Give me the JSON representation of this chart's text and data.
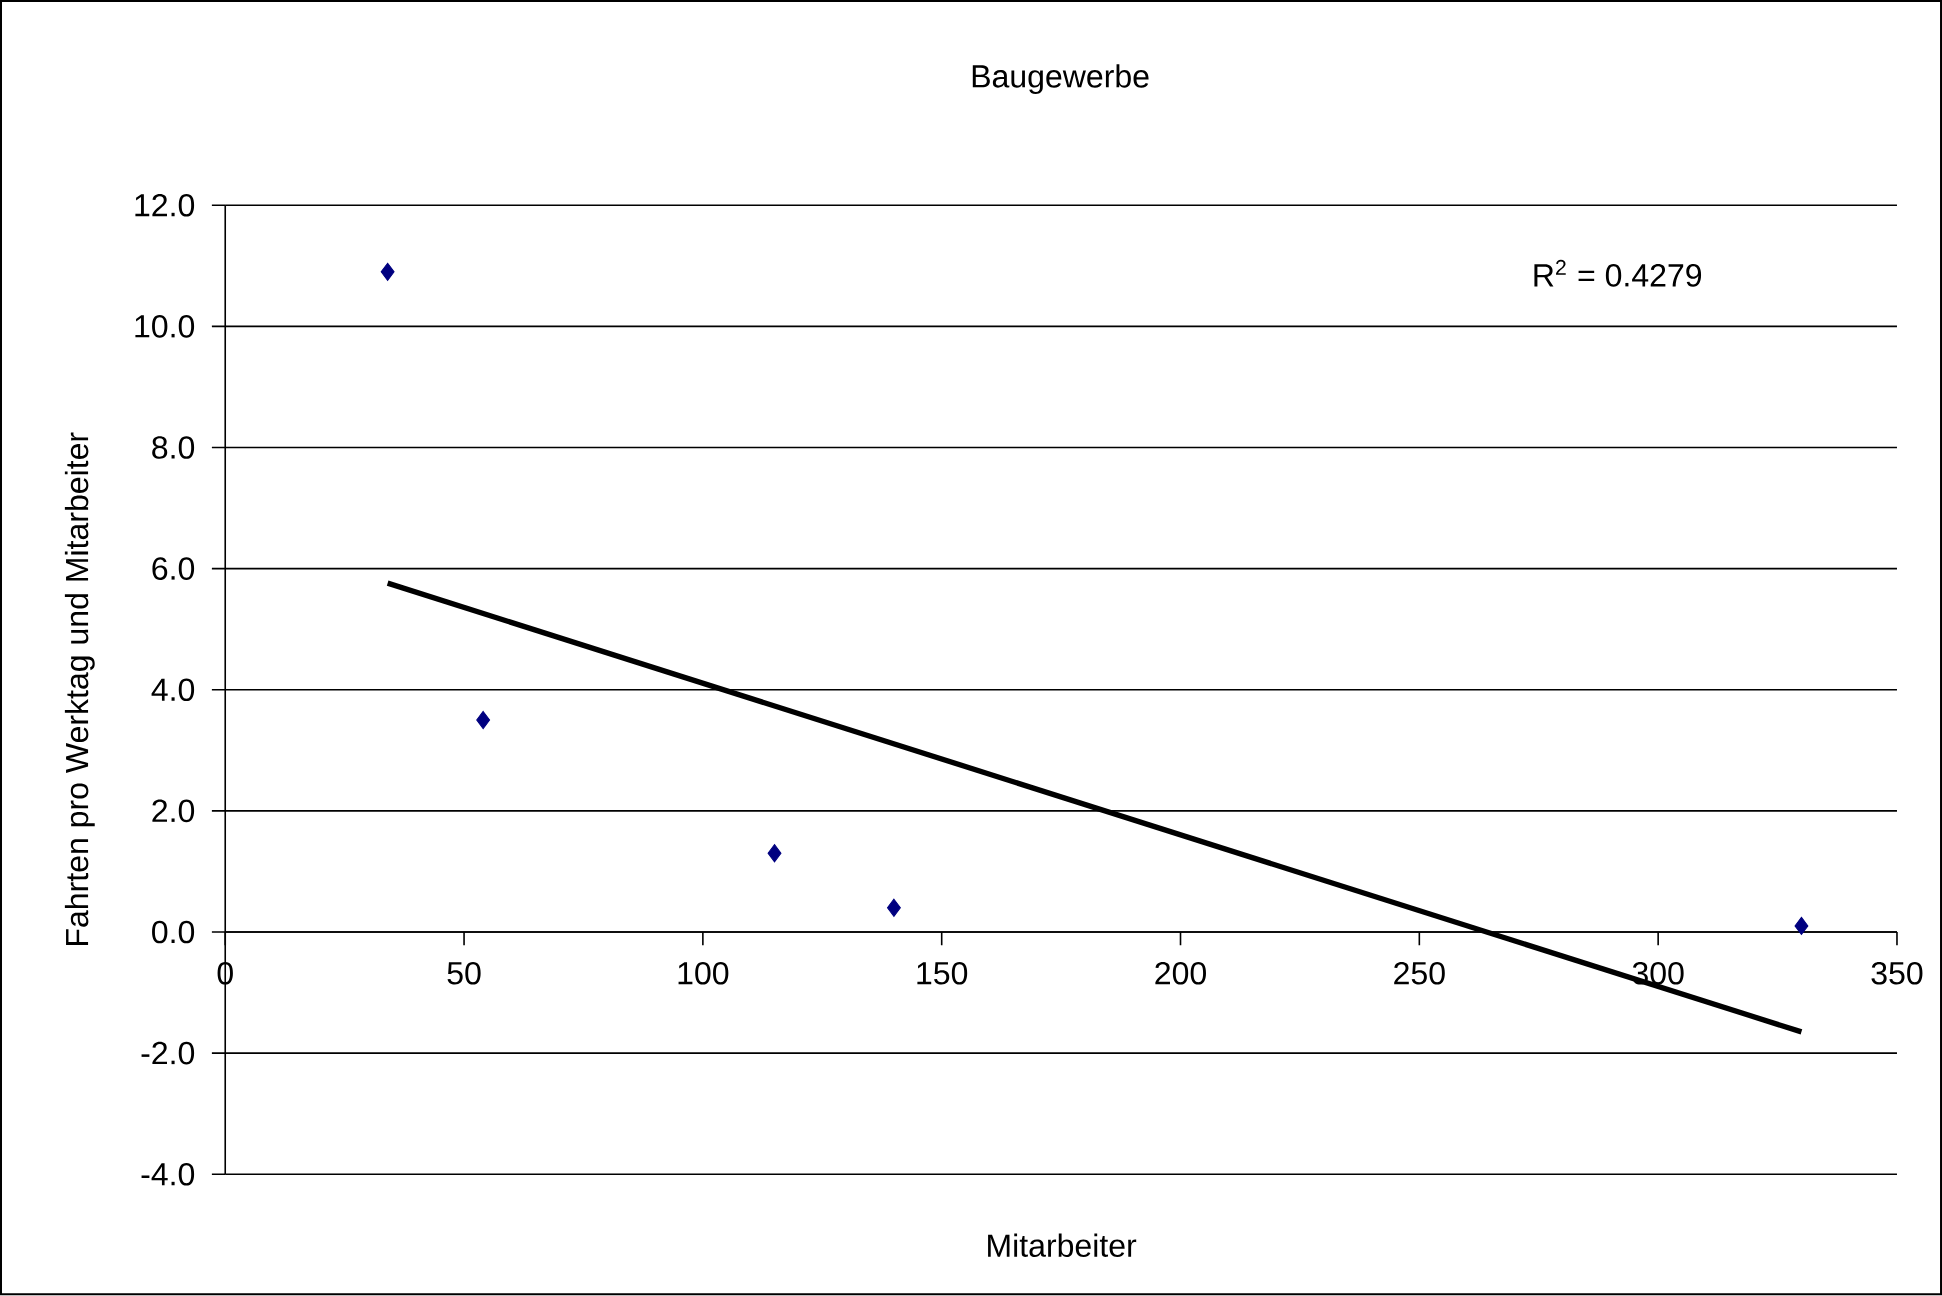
{
  "chart_data": {
    "type": "scatter",
    "title": "Baugewerbe",
    "xlabel": "Mitarbeiter",
    "ylabel": "Fahrten pro Werktag und Mitarbeiter",
    "xlim": [
      0,
      350
    ],
    "xticks": [
      0,
      50,
      100,
      150,
      200,
      250,
      300,
      350
    ],
    "ylim": [
      -4,
      12
    ],
    "yticks": [
      {
        "value": -4,
        "label": "-4.0"
      },
      {
        "value": -2,
        "label": "-2.0"
      },
      {
        "value": 0,
        "label": "0.0"
      },
      {
        "value": 2,
        "label": "2.0"
      },
      {
        "value": 4,
        "label": "4.0"
      },
      {
        "value": 6,
        "label": "6.0"
      },
      {
        "value": 8,
        "label": "8.0"
      },
      {
        "value": 10,
        "label": "10.0"
      },
      {
        "value": 12,
        "label": "12.0"
      }
    ],
    "grid": "y",
    "legend": false,
    "annotations": [
      "R$^{2}$ = 0.4279"
    ],
    "series": [
      {
        "type": "scatter",
        "color": "#000080",
        "marker": "diamond",
        "x": [
          34,
          54,
          115,
          140,
          330
        ],
        "values": [
          10.9,
          3.5,
          1.3,
          0.4,
          0.1
        ]
      },
      {
        "type": "line",
        "color": "#000000",
        "marker": "none",
        "line_style": "solid",
        "x": [
          34,
          330
        ],
        "values": [
          5.76,
          -1.65
        ]
      }
    ]
  }
}
